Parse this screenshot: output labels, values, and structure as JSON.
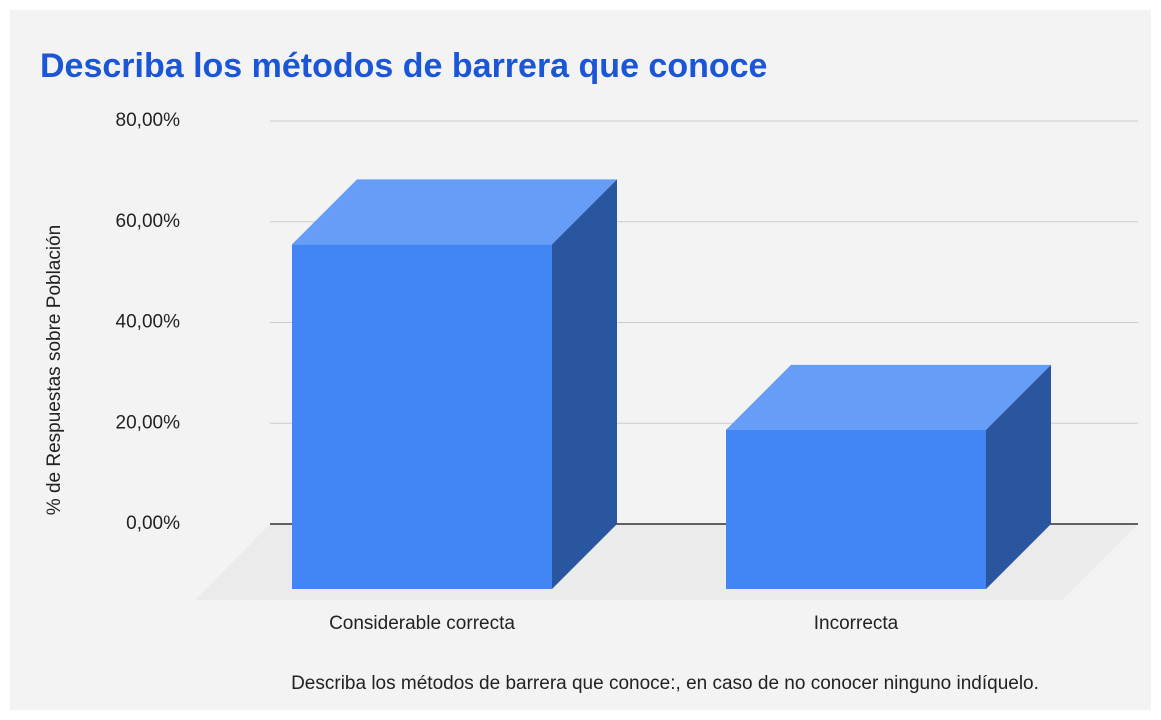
{
  "chart_data": {
    "type": "bar3d",
    "title": "Describa los métodos de barrera que conoce",
    "x_label": "Describa los métodos de barrera que conoce:, en caso de no conocer ninguno indíquelo.",
    "y_label": "% de Respuestas sobre Población",
    "categories": [
      "Considerable correcta",
      "Incorrecta"
    ],
    "values": [
      68.4,
      31.6
    ],
    "colors": {
      "front": "#4285f4",
      "top": "#669df6",
      "side": "#2a56a0"
    },
    "ylim": [
      0,
      80
    ],
    "yticks": [
      {
        "value": 0,
        "label": "0,00%"
      },
      {
        "value": 20,
        "label": "20,00%"
      },
      {
        "value": 40,
        "label": "40,00%"
      },
      {
        "value": 60,
        "label": "60,00%"
      },
      {
        "value": 80,
        "label": "80,00%"
      }
    ],
    "grid": true
  }
}
